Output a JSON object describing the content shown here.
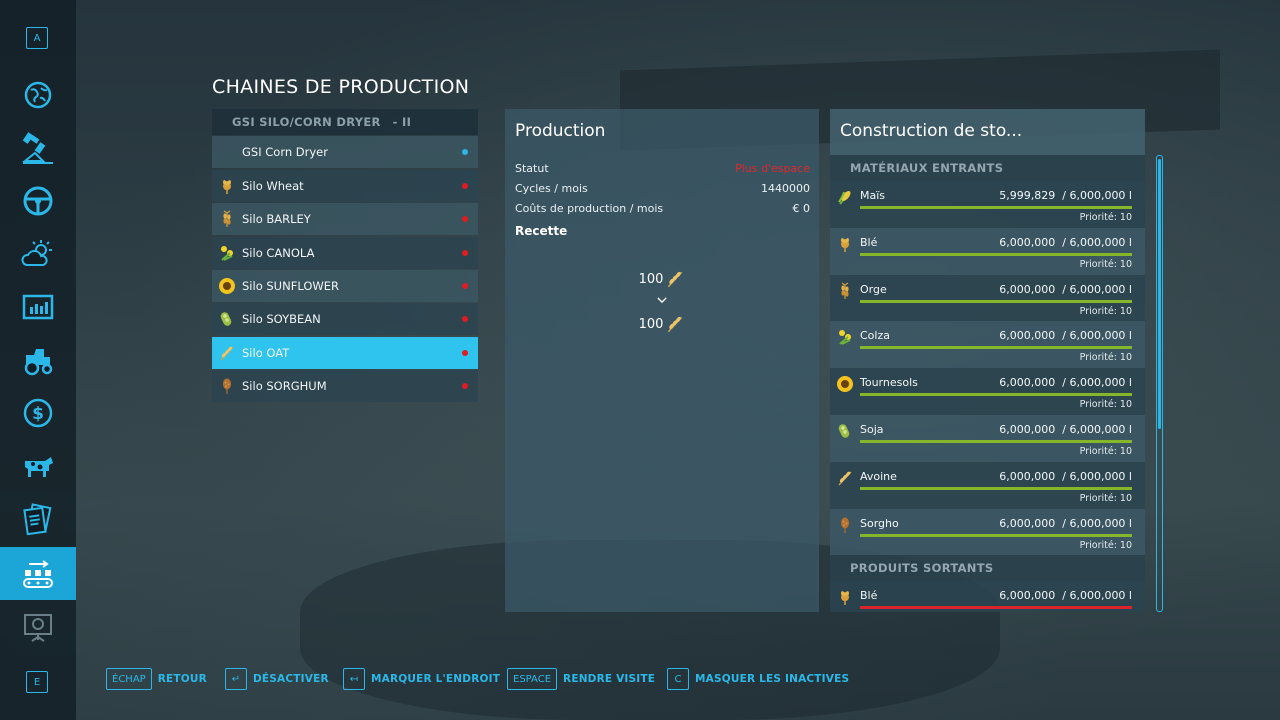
{
  "sidebar": {
    "top_key": "A",
    "bottom_key": "E",
    "items": [
      {
        "icon": "globe-map-icon"
      },
      {
        "icon": "satellite-icon"
      },
      {
        "icon": "steering-wheel-icon"
      },
      {
        "icon": "weather-icon"
      },
      {
        "icon": "statistics-icon"
      },
      {
        "icon": "tractor-icon"
      },
      {
        "icon": "dollar-icon"
      },
      {
        "icon": "cow-icon"
      },
      {
        "icon": "contracts-icon"
      },
      {
        "icon": "production-chains-icon",
        "active": true
      },
      {
        "icon": "tutorial-icon"
      }
    ]
  },
  "page": {
    "title": "CHAINES DE PRODUCTION"
  },
  "chain_list": {
    "group_name": "GSI SILO/CORN DRYER",
    "group_suffix": "- II",
    "items": [
      {
        "label": "GSI Corn Dryer",
        "icon": "",
        "status_color": "#2bb8e8"
      },
      {
        "label": "Silo Wheat",
        "icon": "wheat-icon",
        "status_color": "#e01b22"
      },
      {
        "label": "Silo BARLEY",
        "icon": "barley-icon",
        "status_color": "#e01b22"
      },
      {
        "label": "Silo CANOLA",
        "icon": "canola-icon",
        "status_color": "#e01b22"
      },
      {
        "label": "Silo SUNFLOWER",
        "icon": "sunflower-icon",
        "status_color": "#e01b22"
      },
      {
        "label": "Silo SOYBEAN",
        "icon": "soybean-icon",
        "status_color": "#e01b22"
      },
      {
        "label": "Silo OAT",
        "icon": "oat-icon",
        "status_color": "#e01b22",
        "selected": true
      },
      {
        "label": "Silo SORGHUM",
        "icon": "sorghum-icon",
        "status_color": "#e01b22"
      }
    ]
  },
  "production": {
    "title": "Production",
    "status_label": "Statut",
    "status_value": "Plus d'espace",
    "status_color": "#e0262c",
    "cycles_label": "Cycles / mois",
    "cycles_value": "1440000",
    "cost_label": "Coûts de production / mois",
    "cost_value": "€ 0",
    "recipe_label": "Recette",
    "recipe_input_qty": "100",
    "recipe_output_qty": "100"
  },
  "storage": {
    "title": "Construction de sto...",
    "inputs_label": "MATÉRIAUX ENTRANTS",
    "outputs_label": "PRODUITS SORTANTS",
    "inputs": [
      {
        "name": "Maïs",
        "amount": "5,999,829",
        "capacity": "/ 6,000,000 l",
        "fill": 0.99997,
        "priority": "Priorité: 10",
        "icon": "corn-icon"
      },
      {
        "name": "Blé",
        "amount": "6,000,000",
        "capacity": "/ 6,000,000 l",
        "fill": 1,
        "priority": "Priorité: 10",
        "icon": "wheat-icon"
      },
      {
        "name": "Orge",
        "amount": "6,000,000",
        "capacity": "/ 6,000,000 l",
        "fill": 1,
        "priority": "Priorité: 10",
        "icon": "barley-icon"
      },
      {
        "name": "Colza",
        "amount": "6,000,000",
        "capacity": "/ 6,000,000 l",
        "fill": 1,
        "priority": "Priorité: 10",
        "icon": "canola-icon"
      },
      {
        "name": "Tournesols",
        "amount": "6,000,000",
        "capacity": "/ 6,000,000 l",
        "fill": 1,
        "priority": "Priorité: 10",
        "icon": "sunflower-icon"
      },
      {
        "name": "Soja",
        "amount": "6,000,000",
        "capacity": "/ 6,000,000 l",
        "fill": 1,
        "priority": "Priorité: 10",
        "icon": "soybean-icon"
      },
      {
        "name": "Avoine",
        "amount": "6,000,000",
        "capacity": "/ 6,000,000 l",
        "fill": 1,
        "priority": "Priorité: 10",
        "icon": "oat-icon"
      },
      {
        "name": "Sorgho",
        "amount": "6,000,000",
        "capacity": "/ 6,000,000 l",
        "fill": 1,
        "priority": "Priorité: 10",
        "icon": "sorghum-icon"
      }
    ],
    "outputs": [
      {
        "name": "Blé",
        "amount": "6,000,000",
        "capacity": "/ 6,000,000 l",
        "fill": 1,
        "icon": "wheat-icon"
      }
    ],
    "input_bar_color": "#86b72b",
    "output_bar_color": "#d8242a"
  },
  "bottom_bar": {
    "hints": [
      {
        "key": "ÉCHAP",
        "label": "RETOUR"
      },
      {
        "key": "↵",
        "label": "DÉSACTIVER"
      },
      {
        "key": "↤",
        "label": "MARQUER L'ENDROIT"
      },
      {
        "key": "ESPACE",
        "label": "RENDRE VISITE"
      },
      {
        "key": "C",
        "label": "MASQUER LES INACTIVES"
      }
    ]
  }
}
